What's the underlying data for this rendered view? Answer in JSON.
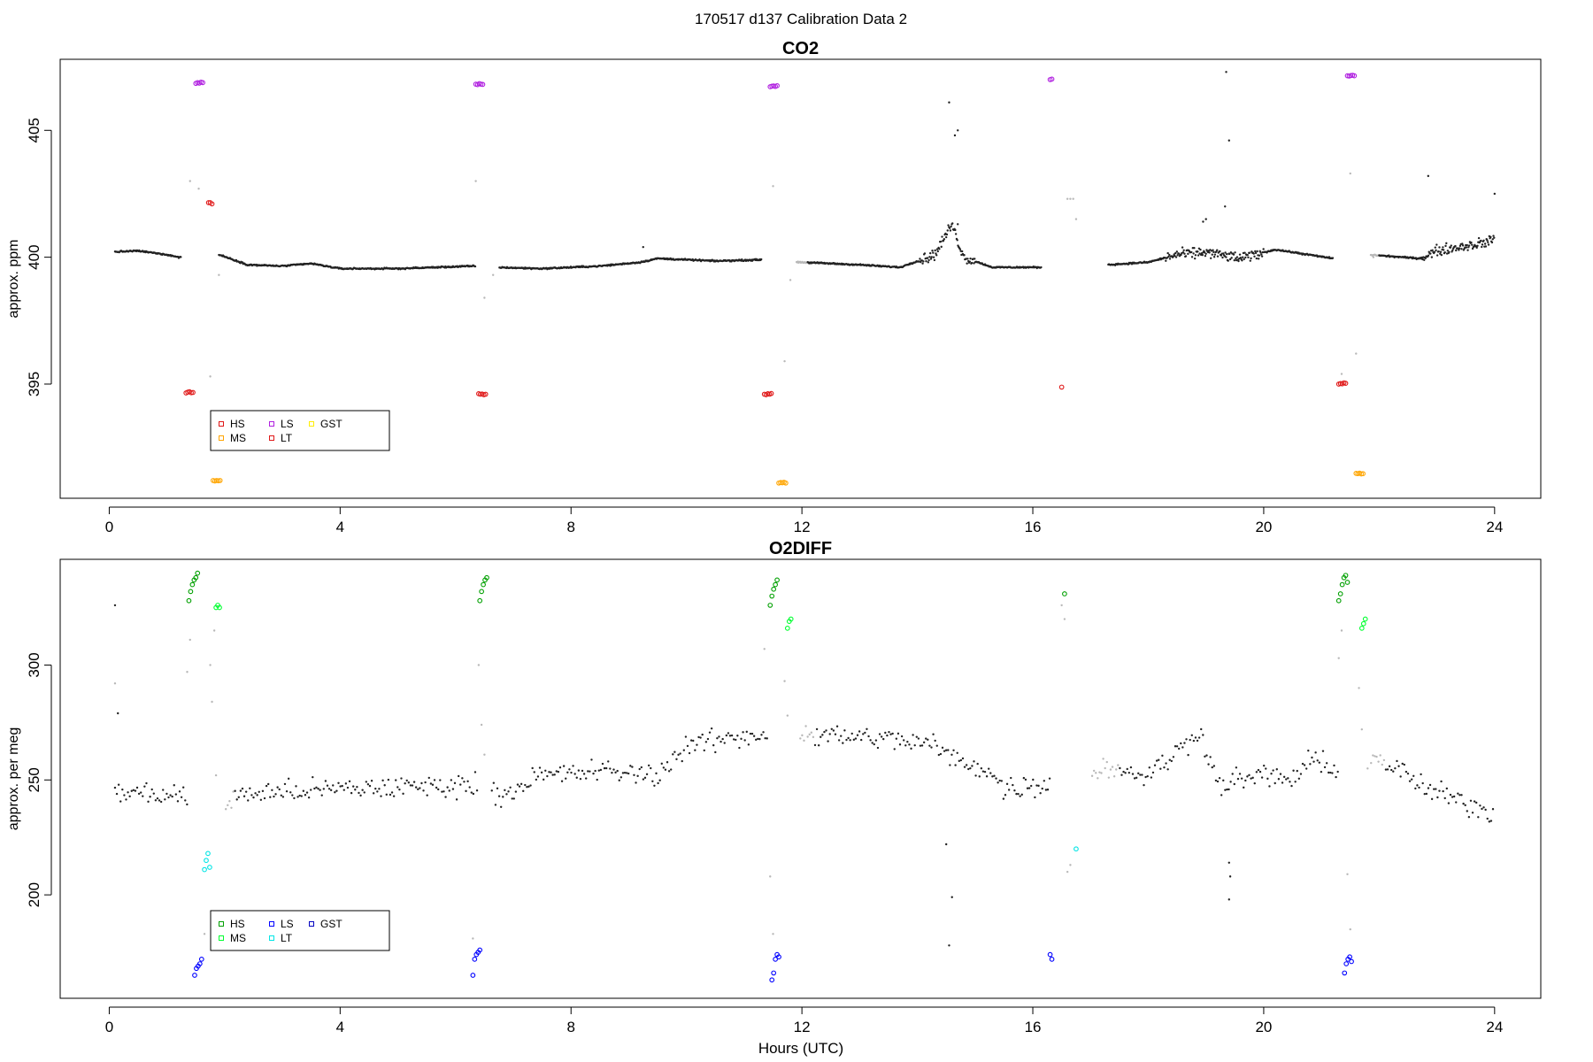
{
  "figure": {
    "title": "170517   d137   Calibration Data 2",
    "xlabel": "Hours (UTC)"
  },
  "colors": {
    "main": "#222222",
    "excluded": "#b8b8b8",
    "HS_co2": "#e01818",
    "MS_co2": "#ffa500",
    "LS_co2": "#b020e0",
    "LT_co2": "#e01818",
    "GST_co2": "#ffee00",
    "HS_o2": "#00a000",
    "MS_o2": "#00ff30",
    "LS_o2": "#0000ff",
    "LT_o2": "#00e5e5",
    "GST_o2": "#0000c0"
  },
  "chart_data": [
    {
      "type": "scatter",
      "title": "CO2",
      "xlabel": "",
      "ylabel": "approx. ppm",
      "xlim": [
        -0.85,
        24.8
      ],
      "ylim": [
        390.5,
        407.8
      ],
      "xticks": [
        0,
        4,
        8,
        12,
        16,
        20,
        24
      ],
      "yticks": [
        395,
        400,
        405
      ],
      "legend": {
        "placement": "bottom-left",
        "entries": [
          "HS",
          "MS",
          "LS",
          "LT",
          "GST"
        ]
      },
      "series": [
        {
          "name": "HS",
          "points": [
            [
              1.33,
              394.65
            ],
            [
              1.36,
              394.68
            ],
            [
              1.39,
              394.7
            ],
            [
              1.42,
              394.66
            ],
            [
              1.45,
              394.67
            ],
            [
              6.4,
              394.62
            ],
            [
              6.43,
              394.6
            ],
            [
              6.46,
              394.61
            ],
            [
              6.49,
              394.58
            ],
            [
              6.52,
              394.6
            ],
            [
              11.35,
              394.6
            ],
            [
              11.38,
              394.58
            ],
            [
              11.41,
              394.62
            ],
            [
              11.44,
              394.6
            ],
            [
              11.47,
              394.63
            ],
            [
              16.5,
              394.88
            ],
            [
              21.3,
              395.0
            ],
            [
              21.33,
              395.02
            ],
            [
              21.36,
              395.01
            ],
            [
              21.39,
              395.05
            ],
            [
              21.42,
              395.03
            ]
          ]
        },
        {
          "name": "MS",
          "points": [
            [
              1.8,
              391.2
            ],
            [
              1.83,
              391.18
            ],
            [
              1.86,
              391.2
            ],
            [
              1.89,
              391.19
            ],
            [
              1.92,
              391.2
            ],
            [
              11.6,
              391.1
            ],
            [
              11.63,
              391.12
            ],
            [
              11.66,
              391.11
            ],
            [
              11.69,
              391.13
            ],
            [
              11.72,
              391.1
            ],
            [
              21.6,
              391.48
            ],
            [
              21.63,
              391.47
            ],
            [
              21.66,
              391.49
            ],
            [
              21.69,
              391.46
            ],
            [
              21.72,
              391.47
            ]
          ]
        },
        {
          "name": "LS",
          "points": [
            [
              1.5,
              406.85
            ],
            [
              1.53,
              406.88
            ],
            [
              1.56,
              406.86
            ],
            [
              1.59,
              406.9
            ],
            [
              1.62,
              406.88
            ],
            [
              6.35,
              406.82
            ],
            [
              6.38,
              406.8
            ],
            [
              6.41,
              406.84
            ],
            [
              6.44,
              406.82
            ],
            [
              6.47,
              406.81
            ],
            [
              11.45,
              406.72
            ],
            [
              11.48,
              406.74
            ],
            [
              11.51,
              406.75
            ],
            [
              11.54,
              406.73
            ],
            [
              11.57,
              406.76
            ],
            [
              16.3,
              407.0
            ],
            [
              16.33,
              407.02
            ],
            [
              21.45,
              407.15
            ],
            [
              21.48,
              407.14
            ],
            [
              21.51,
              407.16
            ],
            [
              21.54,
              407.17
            ],
            [
              21.57,
              407.15
            ]
          ]
        },
        {
          "name": "LT",
          "points": [
            [
              1.72,
              402.15
            ],
            [
              1.75,
              402.15
            ],
            [
              1.78,
              402.1
            ]
          ]
        },
        {
          "name": "GST",
          "points": []
        }
      ]
    },
    {
      "type": "scatter",
      "title": "O2DIFF",
      "xlabel": "Hours (UTC)",
      "ylabel": "approx. per meg",
      "xlim": [
        -0.85,
        24.8
      ],
      "ylim": [
        155,
        346
      ],
      "xticks": [
        0,
        4,
        8,
        12,
        16,
        20,
        24
      ],
      "yticks": [
        200,
        250,
        300
      ],
      "legend": {
        "placement": "bottom-left",
        "entries": [
          "HS",
          "MS",
          "LS",
          "LT",
          "GST"
        ]
      },
      "series": [
        {
          "name": "HS",
          "points": [
            [
              1.38,
              328
            ],
            [
              1.41,
              332
            ],
            [
              1.44,
              335
            ],
            [
              1.47,
              337
            ],
            [
              1.5,
              338
            ],
            [
              1.53,
              340
            ],
            [
              6.42,
              328
            ],
            [
              6.45,
              332
            ],
            [
              6.48,
              335
            ],
            [
              6.51,
              337
            ],
            [
              6.54,
              338
            ],
            [
              11.45,
              326
            ],
            [
              11.48,
              330
            ],
            [
              11.51,
              333
            ],
            [
              11.54,
              335
            ],
            [
              11.57,
              337
            ],
            [
              16.55,
              331
            ],
            [
              21.3,
              328
            ],
            [
              21.33,
              331
            ],
            [
              21.36,
              335
            ],
            [
              21.39,
              338
            ],
            [
              21.42,
              339
            ],
            [
              21.45,
              336
            ]
          ]
        },
        {
          "name": "MS",
          "points": [
            [
              1.85,
              325
            ],
            [
              1.88,
              326
            ],
            [
              1.91,
              325
            ],
            [
              11.75,
              316
            ],
            [
              11.78,
              319
            ],
            [
              11.81,
              320
            ],
            [
              21.7,
              316
            ],
            [
              21.73,
              318
            ],
            [
              21.76,
              320
            ]
          ]
        },
        {
          "name": "LS",
          "points": [
            [
              1.48,
              165
            ],
            [
              1.51,
              168
            ],
            [
              1.54,
              169
            ],
            [
              1.57,
              170
            ],
            [
              1.6,
              172
            ],
            [
              6.3,
              165
            ],
            [
              6.33,
              172
            ],
            [
              6.36,
              174
            ],
            [
              6.39,
              175
            ],
            [
              6.42,
              176
            ],
            [
              11.48,
              163
            ],
            [
              11.51,
              166
            ],
            [
              11.54,
              172
            ],
            [
              11.57,
              174
            ],
            [
              11.6,
              173
            ],
            [
              16.3,
              174
            ],
            [
              16.33,
              172
            ],
            [
              21.4,
              166
            ],
            [
              21.43,
              170
            ],
            [
              21.46,
              172
            ],
            [
              21.49,
              173
            ],
            [
              21.52,
              171
            ]
          ]
        },
        {
          "name": "LT",
          "points": [
            [
              1.65,
              211
            ],
            [
              1.68,
              215
            ],
            [
              1.71,
              218
            ],
            [
              1.74,
              212
            ],
            [
              16.75,
              220
            ]
          ]
        },
        {
          "name": "GST",
          "points": []
        }
      ]
    }
  ]
}
